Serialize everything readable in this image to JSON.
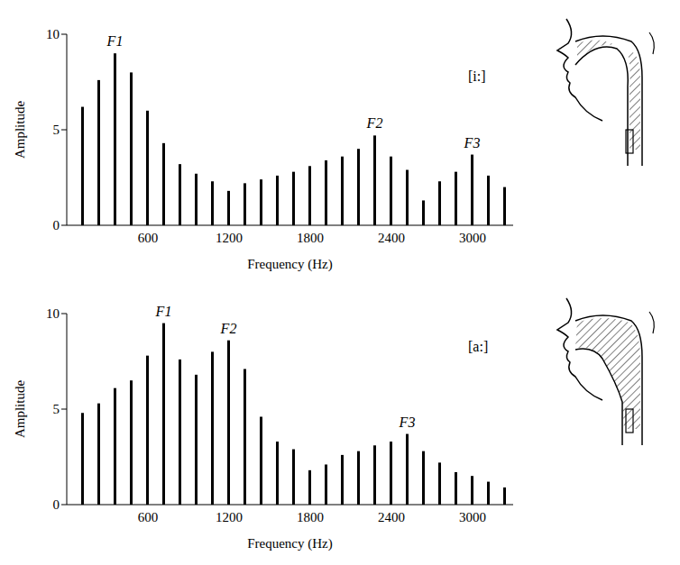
{
  "chart_data": [
    {
      "type": "bar",
      "title": "[i:]",
      "x_label": "Frequency (Hz)",
      "y_label": "Amplitude",
      "x": [
        120,
        240,
        360,
        480,
        600,
        720,
        840,
        960,
        1080,
        1200,
        1320,
        1440,
        1560,
        1680,
        1800,
        1920,
        2040,
        2160,
        2280,
        2400,
        2520,
        2640,
        2760,
        2880,
        3000,
        3120,
        3240
      ],
      "values": [
        6.2,
        7.6,
        9.0,
        8.0,
        6.0,
        4.3,
        3.2,
        2.7,
        2.3,
        1.8,
        2.2,
        2.4,
        2.6,
        2.8,
        3.1,
        3.4,
        3.6,
        4.0,
        4.7,
        3.6,
        2.9,
        1.3,
        2.3,
        2.8,
        3.7,
        2.6,
        2.0
      ],
      "color": "#000000",
      "xlim": [
        0,
        3300
      ],
      "xticks": [
        600,
        1200,
        1800,
        2400,
        3000
      ],
      "ylim": [
        0,
        10
      ],
      "yticks": [
        0,
        5,
        10
      ],
      "grid": false,
      "annotations": [
        {
          "text": "F1",
          "x": 360
        },
        {
          "text": "F2",
          "x": 2280
        },
        {
          "text": "F3",
          "x": 3000
        }
      ]
    },
    {
      "type": "bar",
      "title": "[a:]",
      "x_label": "Frequency (Hz)",
      "y_label": "Amplitude",
      "x": [
        120,
        240,
        360,
        480,
        600,
        720,
        840,
        960,
        1080,
        1200,
        1320,
        1440,
        1560,
        1680,
        1800,
        1920,
        2040,
        2160,
        2280,
        2400,
        2520,
        2640,
        2760,
        2880,
        3000,
        3120,
        3240
      ],
      "values": [
        4.8,
        5.3,
        6.1,
        6.5,
        7.8,
        9.5,
        7.6,
        6.8,
        8.0,
        8.6,
        7.1,
        4.6,
        3.3,
        2.9,
        1.8,
        2.1,
        2.6,
        2.8,
        3.1,
        3.3,
        3.7,
        2.8,
        2.2,
        1.7,
        1.5,
        1.2,
        0.9
      ],
      "color": "#000000",
      "xlim": [
        0,
        3300
      ],
      "xticks": [
        600,
        1200,
        1800,
        2400,
        3000
      ],
      "ylim": [
        0,
        10
      ],
      "yticks": [
        0,
        5,
        10
      ],
      "grid": false,
      "annotations": [
        {
          "text": "F1",
          "x": 720
        },
        {
          "text": "F2",
          "x": 1200
        },
        {
          "text": "F3",
          "x": 2520
        }
      ]
    }
  ]
}
